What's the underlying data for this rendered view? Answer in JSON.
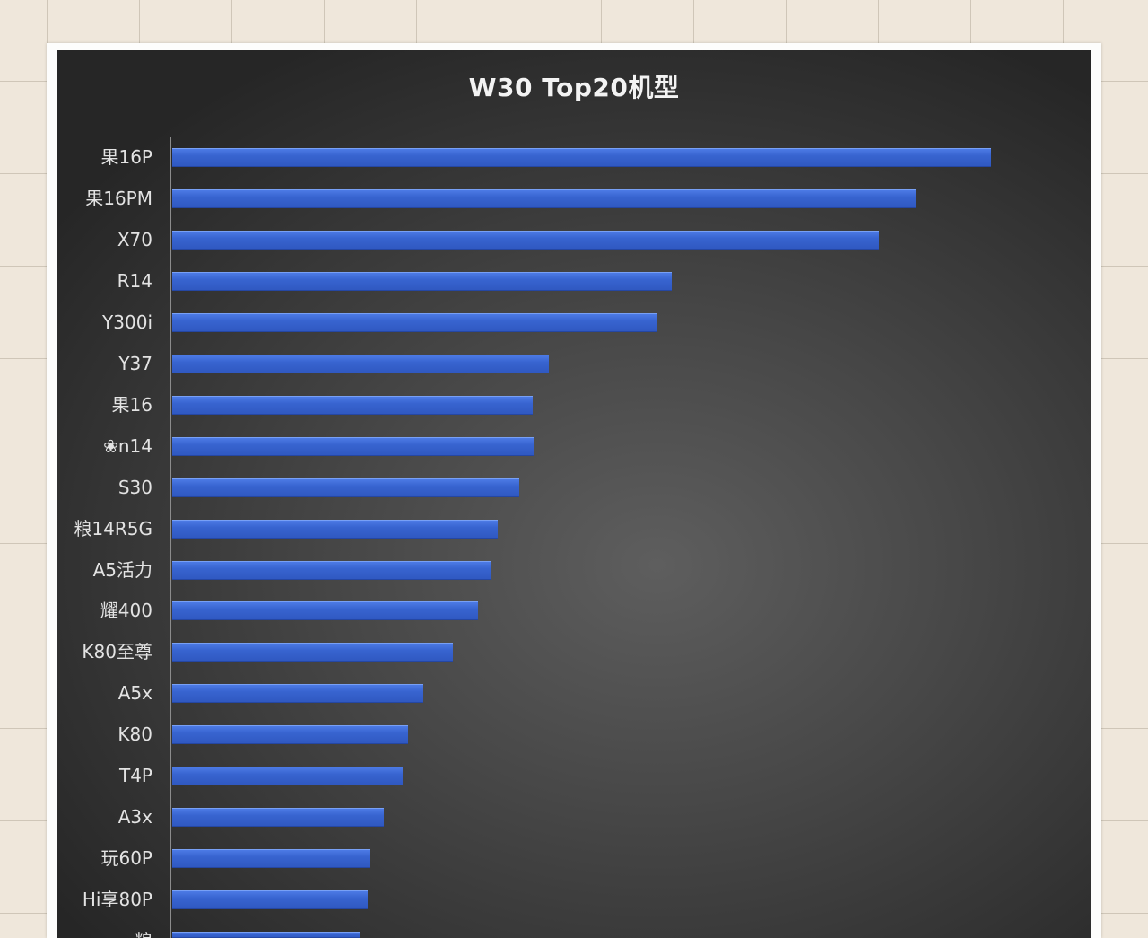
{
  "colors": {
    "bar_top": "#4f7de8",
    "bar": "#3864d0",
    "bar_bottom": "#2f58c0",
    "label_text": "#e3e3e3",
    "title_text": "#f3f3f3"
  },
  "chart_data": {
    "type": "bar",
    "orientation": "horizontal",
    "title": "W30 Top20机型",
    "categories": [
      "果16P",
      "果16PM",
      "X70",
      "R14",
      "Y300i",
      "Y37",
      "果16",
      "❀n14",
      "S30",
      "粮14R5G",
      "A5活力",
      "耀400",
      "K80至尊",
      "A5x",
      "K80",
      "T4P",
      "A3x",
      "玩60P",
      "Hi享80P",
      "粮"
    ],
    "values": [
      100,
      90.8,
      86.3,
      61.0,
      59.3,
      46.0,
      44.0,
      44.1,
      42.4,
      39.8,
      39.0,
      37.3,
      34.3,
      30.7,
      28.8,
      28.1,
      25.8,
      24.2,
      23.9,
      22.9
    ],
    "grid": false,
    "legend": "none"
  }
}
